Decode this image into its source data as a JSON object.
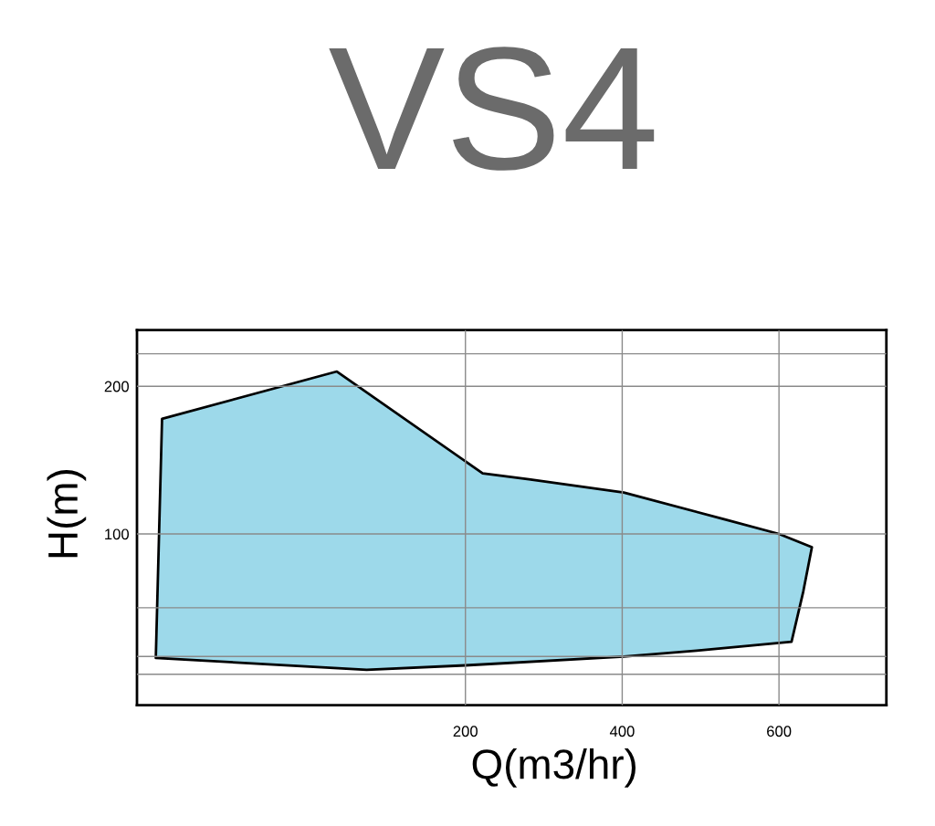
{
  "chart_data": {
    "type": "area",
    "title": "VS4",
    "xlabel": "Q(m3/hr)",
    "ylabel": "H(m)",
    "series": [
      {
        "color": "#9dd9ea",
        "x": [
          -187,
          36,
          222,
          281,
          402,
          530,
          600,
          642,
          631,
          616,
          495,
          402,
          200,
          74,
          -195
        ],
        "values": [
          178,
          210,
          141,
          137,
          128,
          110,
          100,
          91,
          61,
          27,
          21,
          17,
          11,
          8,
          16
        ]
      }
    ],
    "xlim": [
      -219,
      737
    ],
    "xticks": [
      200,
      400,
      600
    ],
    "ylim": [
      -16,
      238
    ],
    "yticks": [
      {
        "value": 5,
        "label": null
      },
      {
        "value": 17,
        "label": null
      },
      {
        "value": 50,
        "label": null
      },
      100,
      200,
      {
        "value": 222,
        "label": null
      }
    ],
    "grid": true
  }
}
